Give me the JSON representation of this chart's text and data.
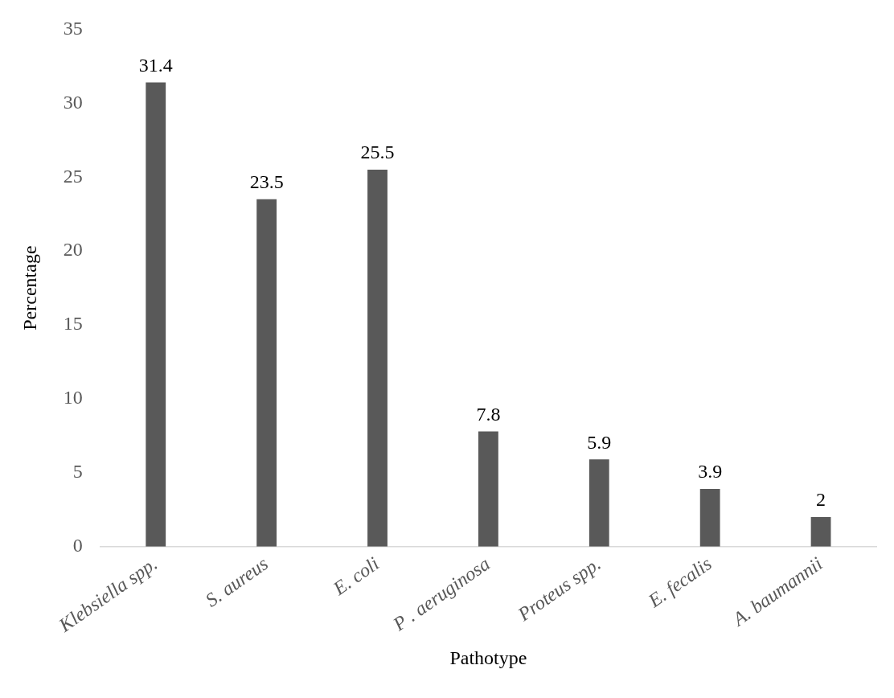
{
  "chart_data": {
    "type": "bar",
    "xlabel": "Pathotype",
    "ylabel": "Percentage",
    "categories": [
      "Klebsiella spp.",
      "S. aureus",
      "E. coli",
      "P . aeruginosa",
      "Proteus spp.",
      "E. fecalis",
      "A. baumannii"
    ],
    "values": [
      31.4,
      23.5,
      25.5,
      7.8,
      5.9,
      3.9,
      2
    ],
    "value_labels": [
      "31.4",
      "23.5",
      "25.5",
      "7.8",
      "5.9",
      "3.9",
      "2"
    ],
    "color": "#595959",
    "ylim": [
      0,
      35
    ],
    "yticks": [
      0,
      5,
      10,
      15,
      20,
      25,
      30,
      35
    ],
    "grid": false,
    "legend": false
  }
}
